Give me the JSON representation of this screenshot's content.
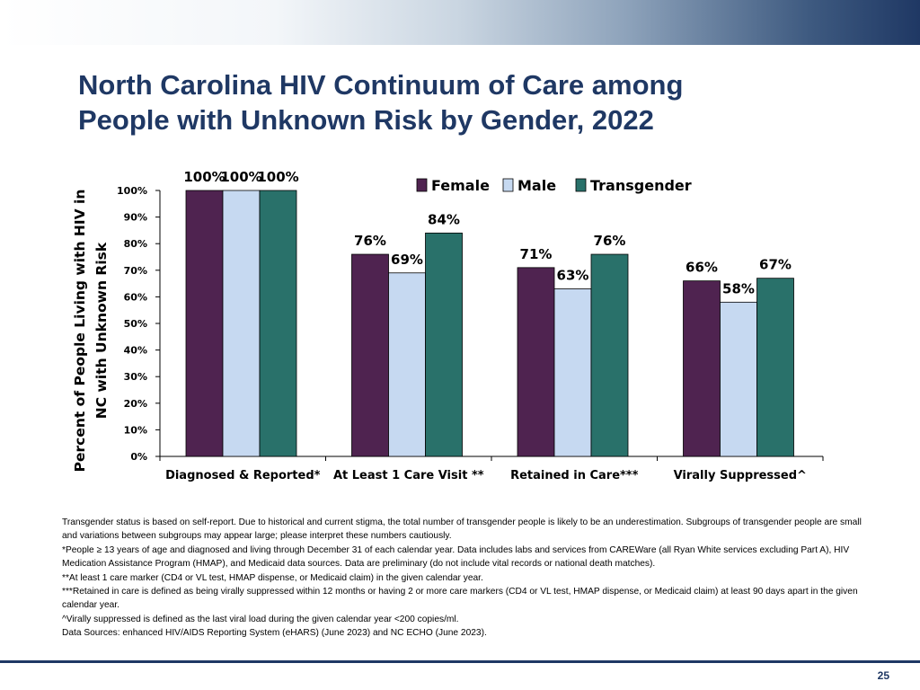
{
  "slide": {
    "title_lines": [
      "North Carolina HIV Continuum of Care among",
      "People with Unknown Risk by Gender, 2022"
    ],
    "page_number": "25"
  },
  "notes": [
    "Transgender status is based on self-report. Due to historical and current stigma, the total number of transgender people is likely to be an underestimation. Subgroups of transgender people are small and variations between subgroups may appear large; please interpret these numbers cautiously.",
    "*People ≥ 13 years of age and diagnosed and living through December 31 of each calendar year. Data includes labs and services from CAREWare (all Ryan White services excluding Part A), HIV Medication Assistance Program (HMAP), and Medicaid data sources. Data are preliminary (do not include vital records or national death matches).",
    "**At least 1 care marker (CD4 or VL test, HMAP dispense, or Medicaid claim) in the given calendar year.",
    "***Retained in care is defined as being virally suppressed within 12 months or having 2 or more care markers (CD4 or VL test, HMAP dispense, or Medicaid claim) at least 90 days apart in the given calendar year.",
    "^Virally suppressed is defined as the last viral load during the given calendar year <200 copies/ml.",
    "Data Sources: enhanced HIV/AIDS Reporting System (eHARS) (June 2023) and NC ECHO (June 2023)."
  ],
  "chart_data": {
    "type": "bar",
    "title": "",
    "xlabel": "",
    "ylabel_lines": [
      "Percent of People Living with HIV in",
      "NC with Unknown Risk"
    ],
    "categories": [
      "Diagnosed & Reported*",
      "At Least 1 Care Visit **",
      "Retained in Care***",
      "Virally Suppressed^"
    ],
    "series": [
      {
        "name": "Female",
        "color": "#4f2350",
        "values": [
          100,
          76,
          71,
          66
        ],
        "labels": [
          "100%",
          "76%",
          "71%",
          "66%"
        ]
      },
      {
        "name": "Male",
        "color": "#c6d9f1",
        "values": [
          100,
          69,
          63,
          58
        ],
        "labels": [
          "100%",
          "69%",
          "63%",
          "58%"
        ]
      },
      {
        "name": "Transgender",
        "color": "#29716a",
        "values": [
          100,
          84,
          76,
          67
        ],
        "labels": [
          "100%",
          "84%",
          "76%",
          "67%"
        ]
      }
    ],
    "ylim": [
      0,
      100
    ],
    "ytick_labels": [
      "0%",
      "10%",
      "20%",
      "30%",
      "40%",
      "50%",
      "60%",
      "70%",
      "80%",
      "90%",
      "100%"
    ],
    "grid": false,
    "legend": "top-right"
  }
}
